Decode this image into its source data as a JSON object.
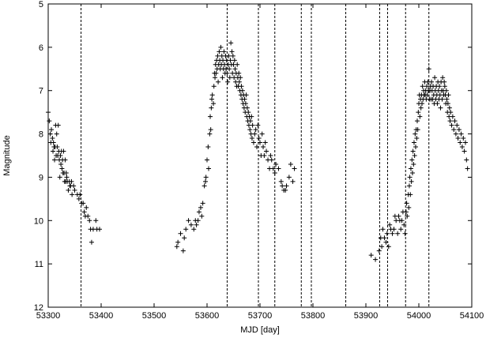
{
  "chart_data": {
    "type": "scatter",
    "title": "",
    "xlabel": "MJD [day]",
    "ylabel": "Magnitude",
    "xlim": [
      53300,
      54100
    ],
    "ylim": [
      5,
      12
    ],
    "y_inverted": true,
    "x_ticks": [
      53300,
      53400,
      53500,
      53600,
      53700,
      53800,
      53900,
      54000,
      54100
    ],
    "y_ticks": [
      5,
      6,
      7,
      8,
      9,
      10,
      11,
      12
    ],
    "grid": false,
    "marker": "plus",
    "marker_color": "#000000",
    "vlines": [
      53362,
      53638,
      53697,
      53728,
      53778,
      53797,
      53862,
      53926,
      53941,
      53975,
      54019
    ],
    "vline_style": "dashed",
    "points": [
      [
        53300,
        7.5
      ],
      [
        53302,
        7.7
      ],
      [
        53304,
        8.0
      ],
      [
        53305,
        8.2
      ],
      [
        53306,
        7.9
      ],
      [
        53308,
        8.1
      ],
      [
        53309,
        8.4
      ],
      [
        53310,
        8.2
      ],
      [
        53311,
        8.3
      ],
      [
        53312,
        8.6
      ],
      [
        53313,
        8.3
      ],
      [
        53314,
        7.8
      ],
      [
        53315,
        8.5
      ],
      [
        53316,
        8.0
      ],
      [
        53317,
        8.3
      ],
      [
        53318,
        8.5
      ],
      [
        53319,
        7.8
      ],
      [
        53320,
        8.4
      ],
      [
        53321,
        8.6
      ],
      [
        53322,
        9.0
      ],
      [
        53323,
        8.5
      ],
      [
        53324,
        8.7
      ],
      [
        53325,
        8.4
      ],
      [
        53326,
        8.8
      ],
      [
        53327,
        8.6
      ],
      [
        53328,
        8.9
      ],
      [
        53329,
        8.4
      ],
      [
        53330,
        8.9
      ],
      [
        53331,
        9.1
      ],
      [
        53332,
        8.6
      ],
      [
        53333,
        9.1
      ],
      [
        53334,
        8.9
      ],
      [
        53335,
        9.0
      ],
      [
        53336,
        9.1
      ],
      [
        53338,
        9.3
      ],
      [
        53340,
        9.1
      ],
      [
        53341,
        9.2
      ],
      [
        53342,
        9.2
      ],
      [
        53344,
        9.1
      ],
      [
        53345,
        9.4
      ],
      [
        53348,
        9.2
      ],
      [
        53350,
        9.3
      ],
      [
        53355,
        9.4
      ],
      [
        53358,
        9.5
      ],
      [
        53360,
        9.4
      ],
      [
        53363,
        9.6
      ],
      [
        53366,
        9.6
      ],
      [
        53368,
        9.8
      ],
      [
        53370,
        9.9
      ],
      [
        53372,
        9.7
      ],
      [
        53375,
        9.9
      ],
      [
        53378,
        10.0
      ],
      [
        53380,
        10.2
      ],
      [
        53382,
        10.5
      ],
      [
        53385,
        10.2
      ],
      [
        53390,
        10.0
      ],
      [
        53392,
        10.2
      ],
      [
        53397,
        10.2
      ],
      [
        53543,
        10.6
      ],
      [
        53545,
        10.5
      ],
      [
        53550,
        10.3
      ],
      [
        53555,
        10.7
      ],
      [
        53557,
        10.4
      ],
      [
        53560,
        10.2
      ],
      [
        53565,
        10.0
      ],
      [
        53570,
        10.1
      ],
      [
        53575,
        10.2
      ],
      [
        53578,
        10.0
      ],
      [
        53580,
        10.1
      ],
      [
        53583,
        10.0
      ],
      [
        53585,
        9.8
      ],
      [
        53588,
        9.7
      ],
      [
        53590,
        9.9
      ],
      [
        53592,
        9.6
      ],
      [
        53595,
        9.2
      ],
      [
        53597,
        9.1
      ],
      [
        53598,
        9.0
      ],
      [
        53600,
        8.6
      ],
      [
        53602,
        8.3
      ],
      [
        53603,
        8.8
      ],
      [
        53605,
        8.0
      ],
      [
        53606,
        7.6
      ],
      [
        53607,
        7.9
      ],
      [
        53608,
        7.4
      ],
      [
        53609,
        7.2
      ],
      [
        53610,
        7.1
      ],
      [
        53612,
        7.3
      ],
      [
        53613,
        6.9
      ],
      [
        53614,
        6.6
      ],
      [
        53615,
        6.7
      ],
      [
        53616,
        6.4
      ],
      [
        53617,
        6.6
      ],
      [
        53618,
        6.3
      ],
      [
        53619,
        6.5
      ],
      [
        53620,
        6.2
      ],
      [
        53621,
        6.8
      ],
      [
        53622,
        6.4
      ],
      [
        53623,
        6.1
      ],
      [
        53624,
        6.3
      ],
      [
        53625,
        6.5
      ],
      [
        53626,
        6.0
      ],
      [
        53627,
        6.4
      ],
      [
        53628,
        6.2
      ],
      [
        53629,
        6.7
      ],
      [
        53630,
        6.3
      ],
      [
        53631,
        6.5
      ],
      [
        53632,
        6.1
      ],
      [
        53633,
        6.4
      ],
      [
        53634,
        6.6
      ],
      [
        53635,
        6.2
      ],
      [
        53636,
        6.5
      ],
      [
        53637,
        6.3
      ],
      [
        53638,
        6.6
      ],
      [
        53639,
        6.8
      ],
      [
        53640,
        6.4
      ],
      [
        53641,
        6.2
      ],
      [
        53642,
        6.5
      ],
      [
        53643,
        6.7
      ],
      [
        53644,
        6.3
      ],
      [
        53645,
        5.9
      ],
      [
        53646,
        6.4
      ],
      [
        53647,
        6.1
      ],
      [
        53648,
        6.6
      ],
      [
        53649,
        6.2
      ],
      [
        53650,
        6.4
      ],
      [
        53651,
        6.7
      ],
      [
        53652,
        6.3
      ],
      [
        53653,
        6.5
      ],
      [
        53654,
        6.8
      ],
      [
        53655,
        6.6
      ],
      [
        53656,
        6.9
      ],
      [
        53657,
        6.4
      ],
      [
        53658,
        6.7
      ],
      [
        53659,
        6.9
      ],
      [
        53660,
        6.6
      ],
      [
        53661,
        6.8
      ],
      [
        53662,
        7.0
      ],
      [
        53663,
        6.7
      ],
      [
        53664,
        7.1
      ],
      [
        53665,
        6.9
      ],
      [
        53666,
        7.2
      ],
      [
        53667,
        7.0
      ],
      [
        53668,
        7.3
      ],
      [
        53669,
        7.1
      ],
      [
        53670,
        7.4
      ],
      [
        53671,
        7.2
      ],
      [
        53672,
        7.5
      ],
      [
        53673,
        7.3
      ],
      [
        53674,
        7.1
      ],
      [
        53675,
        7.6
      ],
      [
        53676,
        7.4
      ],
      [
        53677,
        7.7
      ],
      [
        53678,
        7.5
      ],
      [
        53679,
        7.8
      ],
      [
        53680,
        7.6
      ],
      [
        53681,
        7.9
      ],
      [
        53682,
        7.7
      ],
      [
        53683,
        8.0
      ],
      [
        53684,
        7.6
      ],
      [
        53685,
        8.1
      ],
      [
        53686,
        7.8
      ],
      [
        53688,
        8.2
      ],
      [
        53690,
        8.0
      ],
      [
        53692,
        7.9
      ],
      [
        53694,
        8.3
      ],
      [
        53696,
        7.8
      ],
      [
        53698,
        8.1
      ],
      [
        53700,
        8.2
      ],
      [
        53702,
        8.5
      ],
      [
        53704,
        8.0
      ],
      [
        53706,
        8.3
      ],
      [
        53708,
        8.5
      ],
      [
        53710,
        8.2
      ],
      [
        53712,
        8.4
      ],
      [
        53715,
        8.6
      ],
      [
        53718,
        8.8
      ],
      [
        53720,
        8.5
      ],
      [
        53722,
        8.6
      ],
      [
        53725,
        8.8
      ],
      [
        53728,
        8.9
      ],
      [
        53730,
        8.7
      ],
      [
        53735,
        8.8
      ],
      [
        53740,
        9.1
      ],
      [
        53742,
        9.2
      ],
      [
        53745,
        9.3
      ],
      [
        53748,
        9.3
      ],
      [
        53750,
        9.2
      ],
      [
        53755,
        9.0
      ],
      [
        53758,
        8.7
      ],
      [
        53762,
        9.1
      ],
      [
        53765,
        8.8
      ],
      [
        53910,
        10.8
      ],
      [
        53918,
        10.9
      ],
      [
        53925,
        10.7
      ],
      [
        53928,
        10.4
      ],
      [
        53930,
        10.6
      ],
      [
        53932,
        10.2
      ],
      [
        53935,
        10.4
      ],
      [
        53938,
        10.5
      ],
      [
        53940,
        10.3
      ],
      [
        53943,
        10.6
      ],
      [
        53945,
        10.1
      ],
      [
        53947,
        10.2
      ],
      [
        53950,
        10.3
      ],
      [
        53953,
        10.2
      ],
      [
        53955,
        9.9
      ],
      [
        53957,
        10.0
      ],
      [
        53960,
        10.3
      ],
      [
        53962,
        9.9
      ],
      [
        53964,
        10.0
      ],
      [
        53966,
        10.2
      ],
      [
        53968,
        10.0
      ],
      [
        53970,
        9.8
      ],
      [
        53972,
        10.1
      ],
      [
        53974,
        10.3
      ],
      [
        53976,
        9.8
      ],
      [
        53977,
        9.6
      ],
      [
        53978,
        9.9
      ],
      [
        53980,
        9.4
      ],
      [
        53981,
        9.7
      ],
      [
        53982,
        9.2
      ],
      [
        53983,
        9.0
      ],
      [
        53984,
        9.4
      ],
      [
        53985,
        8.8
      ],
      [
        53986,
        9.1
      ],
      [
        53987,
        8.6
      ],
      [
        53988,
        8.9
      ],
      [
        53989,
        8.4
      ],
      [
        53990,
        8.7
      ],
      [
        53991,
        8.2
      ],
      [
        53992,
        8.5
      ],
      [
        53993,
        8.0
      ],
      [
        53994,
        8.3
      ],
      [
        53995,
        7.9
      ],
      [
        53996,
        8.1
      ],
      [
        53997,
        7.7
      ],
      [
        53998,
        7.9
      ],
      [
        53999,
        7.5
      ],
      [
        54000,
        7.3
      ],
      [
        54001,
        7.1
      ],
      [
        54002,
        7.6
      ],
      [
        54003,
        7.2
      ],
      [
        54004,
        7.4
      ],
      [
        54005,
        7.1
      ],
      [
        54006,
        7.3
      ],
      [
        54007,
        6.9
      ],
      [
        54008,
        7.2
      ],
      [
        54009,
        7.0
      ],
      [
        54010,
        7.1
      ],
      [
        54011,
        6.8
      ],
      [
        54012,
        7.1
      ],
      [
        54013,
        7.0
      ],
      [
        54014,
        7.2
      ],
      [
        54015,
        6.9
      ],
      [
        54016,
        7.1
      ],
      [
        54017,
        6.8
      ],
      [
        54018,
        7.0
      ],
      [
        54019,
        6.5
      ],
      [
        54020,
        7.2
      ],
      [
        54021,
        7.0
      ],
      [
        54022,
        6.9
      ],
      [
        54023,
        7.2
      ],
      [
        54024,
        6.8
      ],
      [
        54025,
        7.0
      ],
      [
        54026,
        7.2
      ],
      [
        54027,
        6.9
      ],
      [
        54028,
        7.1
      ],
      [
        54029,
        7.3
      ],
      [
        54030,
        6.7
      ],
      [
        54031,
        7.0
      ],
      [
        54032,
        7.2
      ],
      [
        54033,
        6.9
      ],
      [
        54034,
        7.1
      ],
      [
        54035,
        7.3
      ],
      [
        54036,
        6.8
      ],
      [
        54037,
        7.0
      ],
      [
        54038,
        7.2
      ],
      [
        54039,
        6.9
      ],
      [
        54040,
        7.1
      ],
      [
        54041,
        7.4
      ],
      [
        54042,
        6.8
      ],
      [
        54043,
        7.0
      ],
      [
        54044,
        7.2
      ],
      [
        54045,
        6.7
      ],
      [
        54046,
        7.0
      ],
      [
        54047,
        7.1
      ],
      [
        54048,
        6.8
      ],
      [
        54049,
        6.9
      ],
      [
        54050,
        7.1
      ],
      [
        54051,
        7.3
      ],
      [
        54052,
        7.0
      ],
      [
        54053,
        7.2
      ],
      [
        54054,
        7.5
      ],
      [
        54055,
        7.3
      ],
      [
        54056,
        7.1
      ],
      [
        54057,
        7.6
      ],
      [
        54058,
        7.4
      ],
      [
        54059,
        7.7
      ],
      [
        54060,
        7.5
      ],
      [
        54062,
        7.8
      ],
      [
        54064,
        7.6
      ],
      [
        54066,
        7.9
      ],
      [
        54068,
        7.7
      ],
      [
        54070,
        8.0
      ],
      [
        54072,
        7.8
      ],
      [
        54074,
        8.1
      ],
      [
        54076,
        7.9
      ],
      [
        54078,
        8.2
      ],
      [
        54080,
        8.0
      ],
      [
        54082,
        8.3
      ],
      [
        54084,
        8.1
      ],
      [
        54086,
        8.4
      ],
      [
        54088,
        8.2
      ],
      [
        54090,
        8.6
      ],
      [
        54092,
        8.8
      ]
    ]
  }
}
